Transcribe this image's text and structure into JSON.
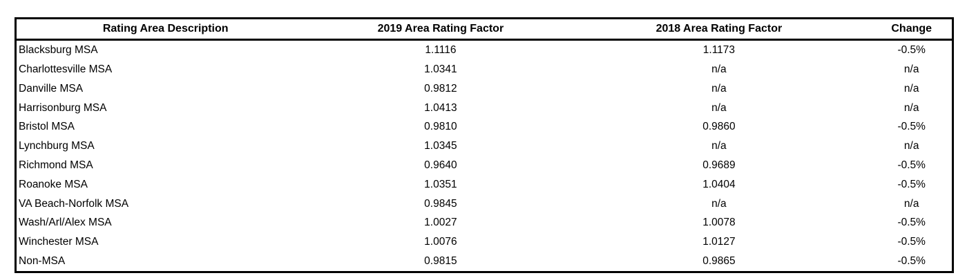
{
  "chart_data": {
    "type": "table",
    "columns": [
      "Rating Area Description",
      "2019 Area Rating Factor",
      "2018 Area Rating Factor",
      "Change"
    ],
    "rows": [
      [
        "Blacksburg MSA",
        "1.1116",
        "1.1173",
        "-0.5%"
      ],
      [
        "Charlottesville MSA",
        "1.0341",
        "n/a",
        "n/a"
      ],
      [
        "Danville MSA",
        "0.9812",
        "n/a",
        "n/a"
      ],
      [
        "Harrisonburg MSA",
        "1.0413",
        "n/a",
        "n/a"
      ],
      [
        "Bristol MSA",
        "0.9810",
        "0.9860",
        "-0.5%"
      ],
      [
        "Lynchburg MSA",
        "1.0345",
        "n/a",
        "n/a"
      ],
      [
        "Richmond MSA",
        "0.9640",
        "0.9689",
        "-0.5%"
      ],
      [
        "Roanoke MSA",
        "1.0351",
        "1.0404",
        "-0.5%"
      ],
      [
        "VA Beach-Norfolk MSA",
        "0.9845",
        "n/a",
        "n/a"
      ],
      [
        "Wash/Arl/Alex MSA",
        "1.0027",
        "1.0078",
        "-0.5%"
      ],
      [
        "Winchester MSA",
        "1.0076",
        "1.0127",
        "-0.5%"
      ],
      [
        "Non-MSA",
        "0.9815",
        "0.9865",
        "-0.5%"
      ]
    ],
    "layout": {
      "border_color": "#000000",
      "text_color": "#000000",
      "background_color": "#ffffff",
      "gridlines": "outer-border-and-header-rule-only",
      "first_column_align": "left",
      "other_columns_align": "center"
    }
  }
}
